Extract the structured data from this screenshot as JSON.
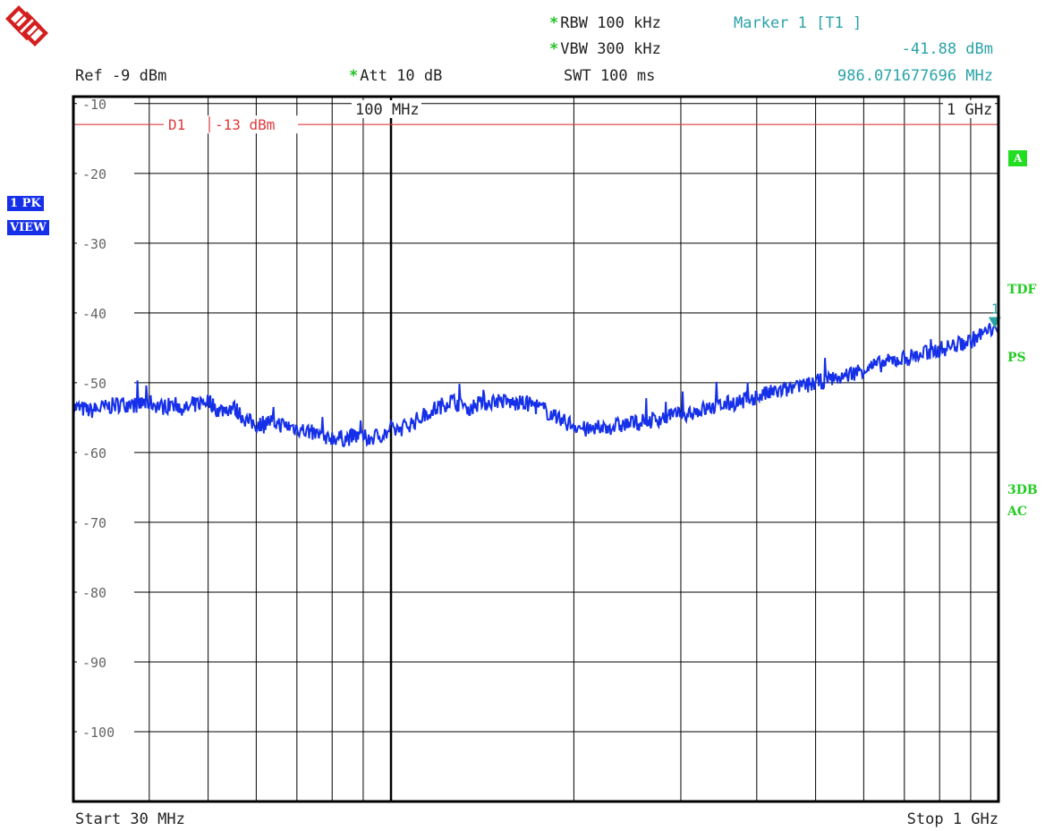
{
  "header": {
    "rbw": "RBW 100 kHz",
    "vbw": "VBW 300 kHz",
    "swt": "SWT 100 ms",
    "att": "Att  10 dB",
    "ref": "Ref -9 dBm",
    "marker_title": "Marker 1 [T1 ]",
    "marker_level": "-41.88 dBm",
    "marker_freq": "986.071677696 MHz",
    "star": "*"
  },
  "side": {
    "trace_mode": "1 PK",
    "trace_view": "VIEW",
    "a_label": "A",
    "tdf": "TDF",
    "ps": "PS",
    "db3": "3DB",
    "ac": "AC"
  },
  "footer": {
    "start": "Start 30 MHz",
    "stop": "Stop 1 GHz"
  },
  "colors": {
    "trace": "#1530e8",
    "limit": "#e03a3a",
    "marker": "#2aa3a8",
    "grid": "#000000"
  },
  "chart_data": {
    "type": "line",
    "xscale": "log",
    "xlim": [
      30,
      1000
    ],
    "ylim": [
      -110,
      -9
    ],
    "yticks": [
      -10,
      -20,
      -30,
      -40,
      -50,
      -60,
      -70,
      -80,
      -90,
      -100
    ],
    "ytick_labels": [
      "-10",
      "-20",
      "-30",
      "-40",
      "-50",
      "-60",
      "-70",
      "-80",
      "-90",
      "-100"
    ],
    "xgrid": [
      40,
      50,
      60,
      70,
      80,
      90,
      100,
      200,
      300,
      400,
      500,
      600,
      700,
      800,
      900
    ],
    "xtick_labels": [
      {
        "x": 100,
        "label": "100 MHz"
      },
      {
        "x": 1000,
        "label": "1 GHz"
      }
    ],
    "limit_line": {
      "name": "D1",
      "level_label": "-13 dBm",
      "y": -13
    },
    "marker": {
      "label": "1",
      "x": 986.07,
      "y": -41.88
    },
    "series": [
      {
        "x": [
          30,
          32,
          34,
          36,
          38,
          40,
          42,
          44,
          46,
          48,
          50,
          52,
          55,
          58,
          60,
          63,
          66,
          70,
          73,
          76,
          80,
          84,
          88,
          92,
          96,
          100,
          104,
          108,
          112,
          116,
          120,
          125,
          130,
          135,
          140,
          150,
          160,
          170,
          180,
          190,
          200,
          210,
          220,
          235,
          250,
          265,
          280,
          300,
          320,
          340,
          360,
          380,
          400,
          420,
          450,
          480,
          500,
          530,
          560,
          600,
          630,
          660,
          700,
          740,
          780,
          820,
          860,
          900,
          940,
          970,
          986,
          1000
        ],
        "y": [
          -53.5,
          -54,
          -53.5,
          -53,
          -53.2,
          -52.8,
          -53.5,
          -53,
          -53.8,
          -53,
          -52.5,
          -54,
          -53.5,
          -55.5,
          -56,
          -55.5,
          -56,
          -56.5,
          -57,
          -57.5,
          -57.8,
          -58,
          -57.6,
          -58,
          -57.5,
          -57,
          -56.5,
          -55.8,
          -55,
          -54,
          -53.5,
          -52.5,
          -53,
          -53.5,
          -53,
          -52.5,
          -53,
          -53,
          -54,
          -55.5,
          -56,
          -56.8,
          -56.5,
          -56.2,
          -55.8,
          -55.5,
          -55,
          -54.5,
          -54,
          -53.5,
          -53,
          -52.6,
          -52,
          -51.5,
          -51,
          -50.5,
          -50,
          -49.5,
          -49,
          -48,
          -47.5,
          -47,
          -46.5,
          -46,
          -45.5,
          -45,
          -44.5,
          -44,
          -43,
          -42.5,
          -41.88,
          -43
        ]
      }
    ]
  }
}
